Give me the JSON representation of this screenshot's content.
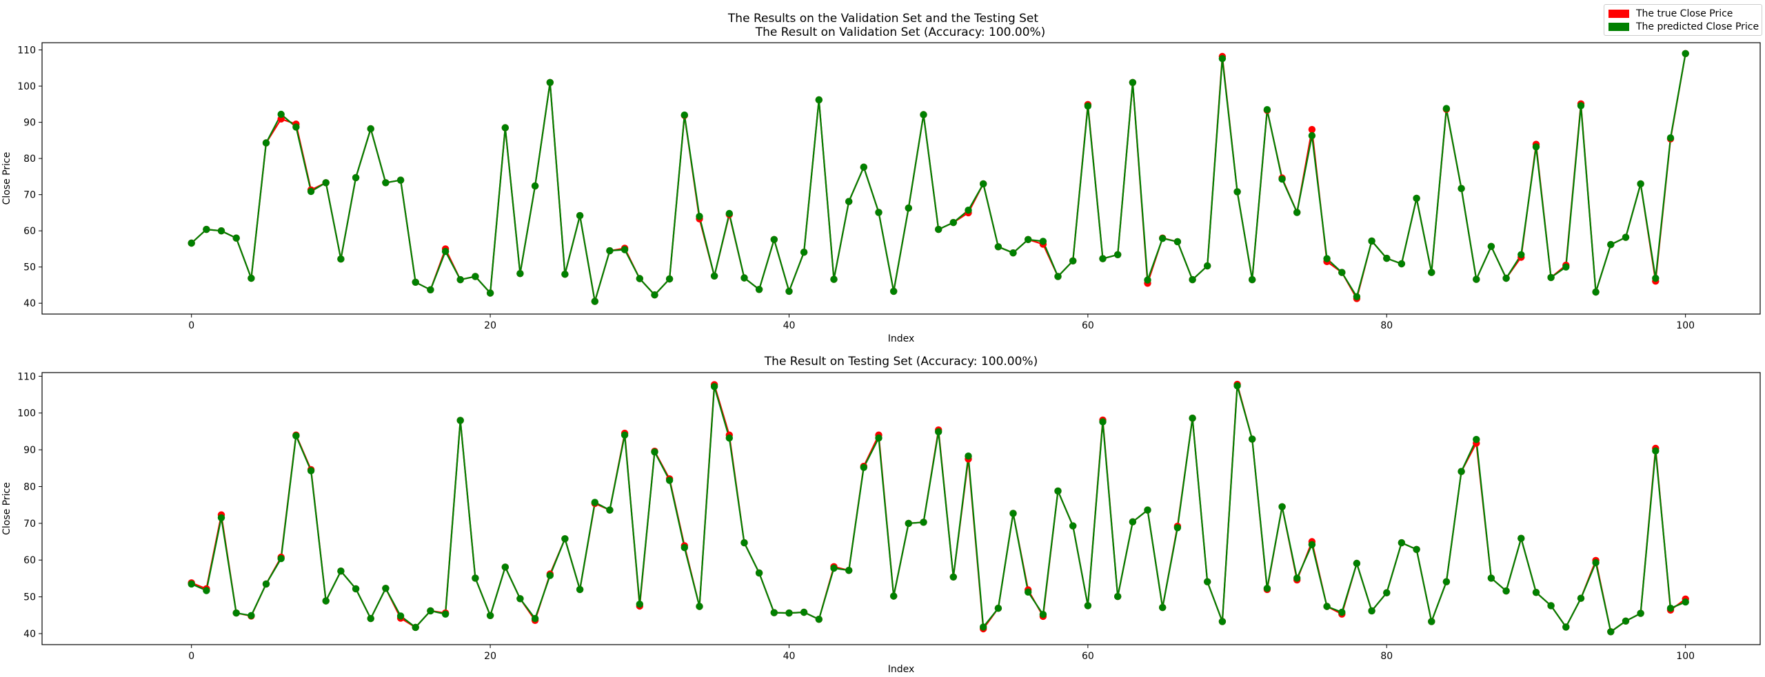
{
  "colors": {
    "true": "#ff0000",
    "predicted": "#008000"
  },
  "suptitle": "The Results on the Validation Set and the Testing Set",
  "legend": {
    "true_label": "The true Close Price",
    "pred_label": "The predicted Close Price"
  },
  "chart_data": [
    {
      "type": "line",
      "title": "The Result on Validation Set (Accuracy: 100.00%)",
      "xlabel": "Index",
      "ylabel": "Close Price",
      "xlim": [
        -10,
        105
      ],
      "ylim": [
        37,
        112
      ],
      "xticks": [
        0,
        20,
        40,
        60,
        80,
        100
      ],
      "yticks": [
        40,
        50,
        60,
        70,
        80,
        90,
        100,
        110
      ],
      "legend_position": "top-right (figure)",
      "x": [
        0,
        1,
        2,
        3,
        4,
        5,
        6,
        7,
        8,
        9,
        10,
        11,
        12,
        13,
        14,
        15,
        16,
        17,
        18,
        19,
        20,
        21,
        22,
        23,
        24,
        25,
        26,
        27,
        28,
        29,
        30,
        31,
        32,
        33,
        34,
        35,
        36,
        37,
        38,
        39,
        40,
        41,
        42,
        43,
        44,
        45,
        46,
        47,
        48,
        49,
        50,
        51,
        52,
        53,
        54,
        55,
        56,
        57,
        58,
        59,
        60,
        61,
        62,
        63,
        64,
        65,
        66,
        67,
        68,
        69,
        70,
        71,
        72,
        73,
        74,
        75,
        76,
        77,
        78,
        79,
        80,
        81,
        82,
        83,
        84,
        85,
        86,
        87,
        88,
        89,
        90,
        91,
        92,
        93,
        94,
        95,
        96,
        97,
        98,
        99,
        100
      ],
      "series": [
        {
          "name": "The true Close Price",
          "values": [
            56.6,
            60.4,
            60.0,
            58.0,
            46.9,
            84.3,
            90.9,
            89.5,
            71.3,
            73.3,
            52.2,
            74.7,
            88.2,
            73.3,
            74.0,
            45.8,
            43.7,
            55.0,
            46.5,
            47.4,
            42.8,
            88.5,
            48.2,
            72.4,
            101.0,
            48.0,
            64.2,
            40.5,
            54.5,
            55.2,
            46.8,
            42.3,
            46.7,
            91.9,
            63.3,
            47.5,
            64.5,
            47.0,
            43.8,
            57.6,
            43.3,
            54.1,
            96.2,
            46.6,
            68.1,
            77.6,
            65.1,
            43.3,
            66.3,
            92.1,
            60.4,
            62.3,
            65.0,
            73.0,
            55.6,
            53.9,
            57.6,
            56.3,
            47.4,
            51.7,
            94.9,
            52.3,
            53.4,
            101.0,
            45.5,
            58.0,
            57.0,
            46.5,
            50.3,
            108.2,
            70.8,
            46.5,
            93.3,
            74.6,
            65.1,
            88.0,
            51.5,
            48.5,
            41.3,
            57.2,
            52.4,
            50.9,
            69.0,
            48.5,
            93.6,
            71.7,
            46.6,
            55.7,
            46.9,
            52.7,
            83.9,
            47.1,
            50.5,
            95.1,
            43.1,
            56.2,
            58.2,
            73.0,
            46.1,
            85.4,
            109.0
          ]
        },
        {
          "name": "The predicted Close Price",
          "values": [
            56.6,
            60.4,
            60.0,
            58.0,
            46.9,
            84.3,
            92.2,
            88.7,
            70.9,
            73.3,
            52.2,
            74.7,
            88.2,
            73.3,
            74.0,
            45.8,
            43.7,
            54.3,
            46.5,
            47.4,
            42.8,
            88.5,
            48.2,
            72.4,
            101.0,
            48.0,
            64.2,
            40.5,
            54.5,
            54.8,
            46.8,
            42.3,
            46.7,
            92.0,
            64.0,
            47.5,
            64.8,
            47.0,
            43.8,
            57.6,
            43.3,
            54.1,
            96.2,
            46.6,
            68.1,
            77.6,
            65.1,
            43.3,
            66.3,
            92.1,
            60.4,
            62.3,
            65.7,
            73.0,
            55.6,
            53.9,
            57.6,
            57.1,
            47.4,
            51.7,
            94.5,
            52.3,
            53.4,
            101.0,
            46.4,
            57.9,
            57.0,
            46.5,
            50.3,
            107.6,
            70.8,
            46.5,
            93.5,
            74.3,
            65.1,
            86.3,
            52.3,
            48.5,
            41.8,
            57.2,
            52.4,
            50.9,
            69.0,
            48.5,
            93.8,
            71.7,
            46.6,
            55.7,
            46.9,
            53.4,
            83.2,
            47.1,
            50.0,
            94.6,
            43.1,
            56.2,
            58.2,
            73.0,
            46.9,
            85.7,
            109.0
          ]
        }
      ]
    },
    {
      "type": "line",
      "title": "The Result on Testing Set  (Accuracy: 100.00%)",
      "xlabel": "Index",
      "ylabel": "Close Price",
      "xlim": [
        -10,
        105
      ],
      "ylim": [
        37,
        111
      ],
      "xticks": [
        0,
        20,
        40,
        60,
        80,
        100
      ],
      "yticks": [
        40,
        50,
        60,
        70,
        80,
        90,
        100,
        110
      ],
      "x": [
        0,
        1,
        2,
        3,
        4,
        5,
        6,
        7,
        8,
        9,
        10,
        11,
        12,
        13,
        14,
        15,
        16,
        17,
        18,
        19,
        20,
        21,
        22,
        23,
        24,
        25,
        26,
        27,
        28,
        29,
        30,
        31,
        32,
        33,
        34,
        35,
        36,
        37,
        38,
        39,
        40,
        41,
        42,
        43,
        44,
        45,
        46,
        47,
        48,
        49,
        50,
        51,
        52,
        53,
        54,
        55,
        56,
        57,
        58,
        59,
        60,
        61,
        62,
        63,
        64,
        65,
        66,
        67,
        68,
        69,
        70,
        71,
        72,
        73,
        74,
        75,
        76,
        77,
        78,
        79,
        80,
        81,
        82,
        83,
        84,
        85,
        86,
        87,
        88,
        89,
        90,
        91,
        92,
        93,
        94,
        95,
        96,
        97,
        98,
        99,
        100
      ],
      "series": [
        {
          "name": "The true Close Price",
          "values": [
            53.8,
            52.2,
            72.3,
            45.6,
            44.8,
            53.5,
            60.8,
            94.0,
            84.6,
            48.9,
            57.0,
            52.2,
            44.1,
            52.3,
            44.2,
            41.7,
            46.2,
            45.6,
            98.0,
            55.1,
            44.9,
            58.1,
            49.5,
            43.6,
            56.2,
            65.8,
            52.0,
            75.4,
            73.6,
            94.5,
            47.5,
            89.6,
            82.1,
            63.9,
            47.4,
            107.7,
            94.0,
            64.7,
            56.5,
            45.7,
            45.6,
            45.8,
            43.9,
            58.2,
            57.2,
            85.5,
            94.0,
            50.2,
            70.0,
            70.3,
            95.4,
            55.4,
            87.5,
            41.3,
            46.9,
            72.7,
            51.9,
            44.7,
            78.8,
            69.3,
            47.6,
            98.1,
            50.1,
            70.4,
            73.6,
            47.1,
            69.2,
            98.6,
            54.1,
            43.3,
            107.8,
            92.9,
            52.0,
            74.5,
            54.6,
            65.0,
            47.4,
            45.3,
            59.1,
            46.2,
            51.1,
            64.7,
            62.9,
            43.3,
            54.1,
            84.1,
            91.8,
            55.1,
            51.6,
            65.9,
            51.2,
            47.6,
            41.8,
            49.6,
            59.9,
            40.5,
            43.4,
            45.5,
            90.4,
            46.4,
            49.4
          ]
        },
        {
          "name": "The predicted Close Price",
          "values": [
            53.5,
            51.7,
            71.5,
            45.6,
            44.9,
            53.5,
            60.4,
            93.8,
            84.3,
            48.9,
            57.0,
            52.2,
            44.1,
            52.3,
            44.8,
            41.7,
            46.2,
            45.3,
            98.0,
            55.1,
            44.9,
            58.1,
            49.5,
            44.1,
            55.8,
            65.8,
            52.0,
            75.7,
            73.6,
            94.0,
            48.0,
            89.4,
            81.7,
            63.4,
            47.4,
            107.2,
            93.2,
            64.7,
            56.5,
            45.7,
            45.6,
            45.8,
            43.9,
            57.8,
            57.2,
            85.2,
            93.2,
            50.2,
            70.0,
            70.3,
            94.9,
            55.4,
            88.3,
            41.8,
            46.9,
            72.7,
            51.3,
            45.2,
            78.8,
            69.3,
            47.6,
            97.6,
            50.1,
            70.4,
            73.6,
            47.1,
            68.8,
            98.6,
            54.1,
            43.3,
            107.4,
            92.9,
            52.3,
            74.5,
            55.1,
            64.2,
            47.4,
            45.8,
            59.1,
            46.2,
            51.1,
            64.7,
            62.9,
            43.3,
            54.1,
            84.1,
            92.8,
            55.1,
            51.6,
            65.9,
            51.2,
            47.6,
            41.8,
            49.6,
            59.3,
            40.5,
            43.4,
            45.5,
            89.7,
            46.9,
            48.6
          ]
        }
      ]
    }
  ]
}
